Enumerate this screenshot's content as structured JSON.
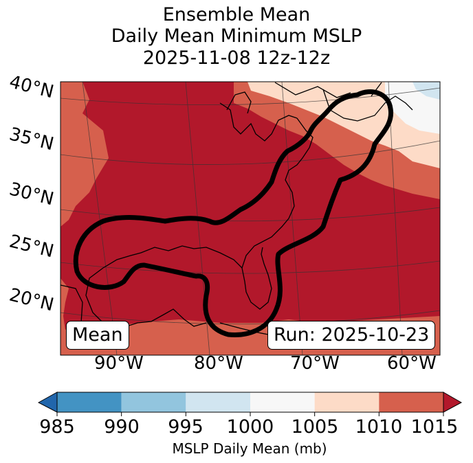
{
  "title": {
    "line1": "Ensemble Mean",
    "line2": "Daily Mean Minimum MSLP",
    "line3": "2025-11-08 12z-12z"
  },
  "map": {
    "lat_labels": [
      "40°N",
      "35°N",
      "30°N",
      "25°N",
      "20°N"
    ],
    "lon_labels": [
      "90°W",
      "80°W",
      "70°W",
      "60°W"
    ],
    "mean_box": "Mean",
    "run_box": "Run: 2025-10-23",
    "colors": {
      "c1010_1015": "#b2182b",
      "c1005_1010": "#d6604d",
      "c1000_1005": "#fddbc7",
      "c995_1000": "#f7f7f7",
      "c990_995": "#d1e5f0"
    }
  },
  "colorbar": {
    "ticks": [
      "985",
      "990",
      "995",
      "1000",
      "1005",
      "1010",
      "1015"
    ],
    "label": "MSLP Daily Mean (mb)",
    "colors": [
      "#4393c3",
      "#92c5de",
      "#d1e5f0",
      "#f7f7f7",
      "#fddbc7",
      "#d6604d"
    ],
    "under_color": "#2166ac",
    "over_color": "#b2182b"
  }
}
